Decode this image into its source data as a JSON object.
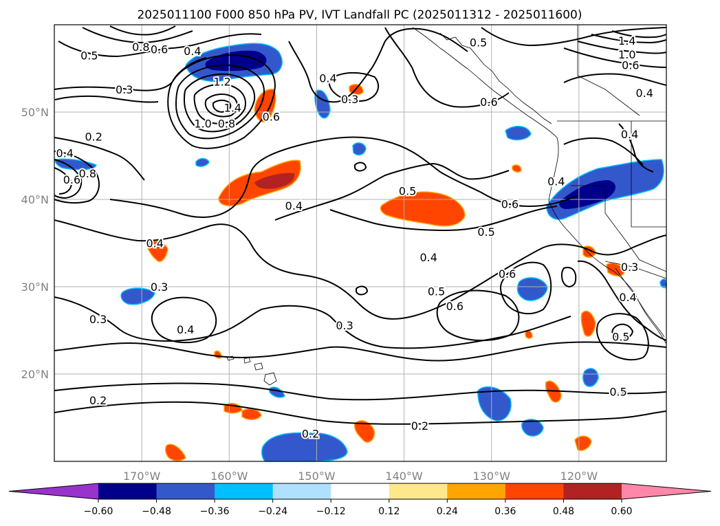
{
  "chart_data": {
    "type": "heatmap",
    "title": "2025011100 F000 850 hPa PV, IVT Landfall PC (2025011312 - 2025011600)",
    "xlim": [
      -180,
      -110
    ],
    "ylim": [
      10,
      60
    ],
    "lon_ticks": [
      {
        "value": -170,
        "label": "170°W"
      },
      {
        "value": -160,
        "label": "160°W"
      },
      {
        "value": -150,
        "label": "150°W"
      },
      {
        "value": -140,
        "label": "140°W"
      },
      {
        "value": -130,
        "label": "130°W"
      },
      {
        "value": -120,
        "label": "120°W"
      }
    ],
    "lat_ticks": [
      {
        "value": 50,
        "label": "50°N"
      },
      {
        "value": 40,
        "label": "40°N"
      },
      {
        "value": 30,
        "label": "30°N"
      },
      {
        "value": 20,
        "label": "20°N"
      }
    ],
    "grid": true,
    "colorbar": {
      "orientation": "horizontal",
      "extend": "both",
      "levels": [
        -0.6,
        -0.48,
        -0.36,
        -0.24,
        -0.12,
        0.12,
        0.24,
        0.36,
        0.48,
        0.6
      ],
      "tick_labels": [
        "−0.60",
        "−0.48",
        "−0.36",
        "−0.24",
        "−0.12",
        "0.12",
        "0.24",
        "0.36",
        "0.48",
        "0.60"
      ],
      "colors": [
        "#9933cc",
        "#00008b",
        "#3358cc",
        "#00bfff",
        "#b0e0ff",
        "#ffffff",
        "#ffe88c",
        "#ffa500",
        "#ff4500",
        "#b22222",
        "#ff88aa"
      ]
    },
    "contour_labels": [
      {
        "text": "0.5",
        "lon": -176.0,
        "lat": 56.5
      },
      {
        "text": "0.8",
        "lon": -170.1,
        "lat": 57.5
      },
      {
        "text": "0.6",
        "lon": -168.0,
        "lat": 57.2
      },
      {
        "text": "0.4",
        "lon": -164.2,
        "lat": 57.0
      },
      {
        "text": "0.3",
        "lon": -172.0,
        "lat": 52.6
      },
      {
        "text": "1.2",
        "lon": -160.8,
        "lat": 53.5
      },
      {
        "text": "1.4",
        "lon": -159.6,
        "lat": 50.5
      },
      {
        "text": "1.0",
        "lon": -163.0,
        "lat": 48.7
      },
      {
        "text": "0.8",
        "lon": -160.3,
        "lat": 48.7
      },
      {
        "text": "0.6",
        "lon": -155.2,
        "lat": 49.5
      },
      {
        "text": "0.4",
        "lon": -148.7,
        "lat": 53.9
      },
      {
        "text": "0.3",
        "lon": -146.2,
        "lat": 51.5
      },
      {
        "text": "0.5",
        "lon": -131.5,
        "lat": 58.0
      },
      {
        "text": "0.6",
        "lon": -130.3,
        "lat": 51.2
      },
      {
        "text": "0.2",
        "lon": -175.5,
        "lat": 47.2
      },
      {
        "text": "0.4",
        "lon": -178.8,
        "lat": 45.3
      },
      {
        "text": "0.6",
        "lon": -178.0,
        "lat": 42.3
      },
      {
        "text": "0.8",
        "lon": -176.2,
        "lat": 43.0
      },
      {
        "text": "0.4",
        "lon": -152.6,
        "lat": 39.3
      },
      {
        "text": "0.5",
        "lon": -139.6,
        "lat": 41.0
      },
      {
        "text": "0.6",
        "lon": -127.9,
        "lat": 39.5
      },
      {
        "text": "0.5",
        "lon": -130.6,
        "lat": 36.3
      },
      {
        "text": "0.4",
        "lon": -122.6,
        "lat": 42.1
      },
      {
        "text": "0.4",
        "lon": -168.5,
        "lat": 35.0
      },
      {
        "text": "0.4",
        "lon": -137.2,
        "lat": 33.4
      },
      {
        "text": "0.3",
        "lon": -168.0,
        "lat": 30.0
      },
      {
        "text": "0.6",
        "lon": -128.2,
        "lat": 31.5
      },
      {
        "text": "0.3",
        "lon": -114.2,
        "lat": 32.3
      },
      {
        "text": "0.5",
        "lon": -136.3,
        "lat": 29.5
      },
      {
        "text": "0.6",
        "lon": -134.2,
        "lat": 27.8
      },
      {
        "text": "0.4",
        "lon": -114.4,
        "lat": 28.8
      },
      {
        "text": "0.3",
        "lon": -175.0,
        "lat": 26.3
      },
      {
        "text": "0.4",
        "lon": -165.0,
        "lat": 25.1
      },
      {
        "text": "0.3",
        "lon": -146.8,
        "lat": 25.6
      },
      {
        "text": "0.5",
        "lon": -115.2,
        "lat": 24.3
      },
      {
        "text": "0.5",
        "lon": -115.5,
        "lat": 18.0
      },
      {
        "text": "0.2",
        "lon": -175.0,
        "lat": 17.0
      },
      {
        "text": "0.2",
        "lon": -150.7,
        "lat": 13.2
      },
      {
        "text": "0.2",
        "lon": -138.2,
        "lat": 14.1
      },
      {
        "text": "1.4",
        "lon": -114.5,
        "lat": 58.2
      },
      {
        "text": "1.0",
        "lon": -114.5,
        "lat": 56.6
      },
      {
        "text": "0.6",
        "lon": -114.1,
        "lat": 55.4
      },
      {
        "text": "0.4",
        "lon": -112.5,
        "lat": 52.2
      },
      {
        "text": "0.4",
        "lon": -114.2,
        "lat": 47.5
      }
    ]
  }
}
